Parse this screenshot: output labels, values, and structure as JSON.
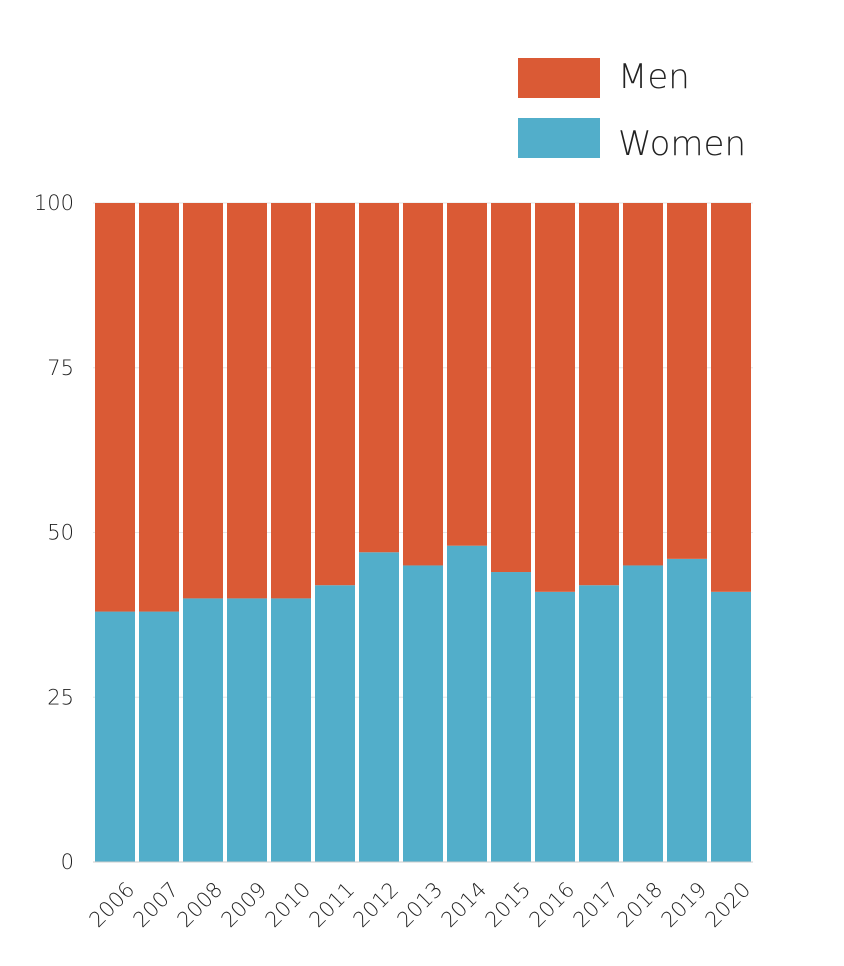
{
  "chart_data": {
    "type": "bar",
    "stacked": true,
    "title": "",
    "xlabel": "",
    "ylabel": "",
    "ylim": [
      0,
      100
    ],
    "yticks": [
      0,
      25,
      50,
      75,
      100
    ],
    "categories": [
      "2006",
      "2007",
      "2008",
      "2009",
      "2010",
      "2011",
      "2012",
      "2013",
      "2014",
      "2015",
      "2016",
      "2017",
      "2018",
      "2019",
      "2020"
    ],
    "series": [
      {
        "name": "Women",
        "color": "#52aeca",
        "values": [
          38,
          38,
          40,
          40,
          40,
          42,
          47,
          45,
          48,
          44,
          41,
          42,
          45,
          46,
          41
        ]
      },
      {
        "name": "Men",
        "color": "#da5a35",
        "values": [
          62,
          62,
          60,
          60,
          60,
          58,
          53,
          55,
          52,
          56,
          59,
          58,
          55,
          54,
          59
        ]
      }
    ],
    "legend": {
      "position": "top-right",
      "entries": [
        {
          "label": "Men",
          "color": "#da5a35"
        },
        {
          "label": "Women",
          "color": "#52aeca"
        }
      ]
    },
    "grid": true
  }
}
